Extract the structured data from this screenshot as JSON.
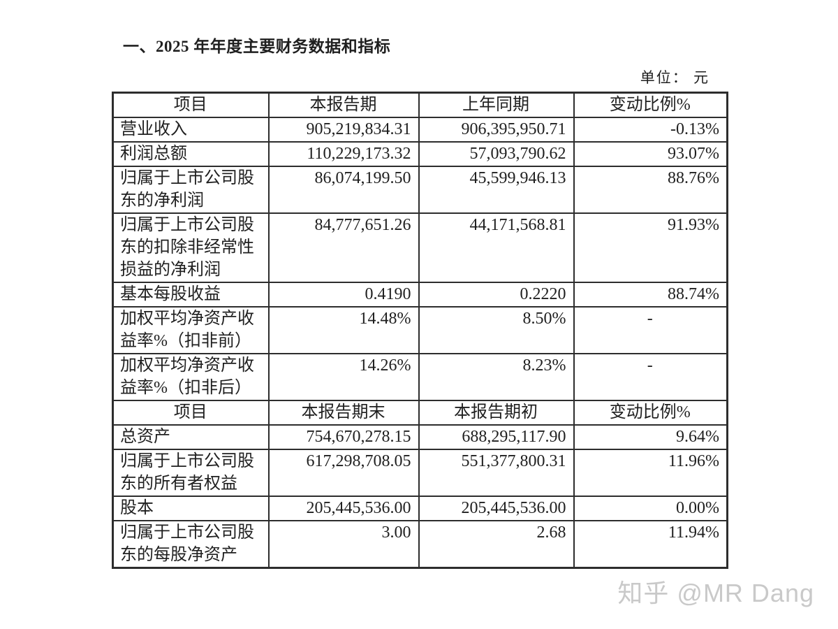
{
  "page": {
    "title": "一、2025 年年度主要财务数据和指标",
    "unit_label": "单位： 元",
    "watermark": "知乎 @MR Dang"
  },
  "colors": {
    "text": "#1f1f1f",
    "border": "#2d2d2d",
    "watermark": "#c9c9c9",
    "background": "#ffffff"
  },
  "table": {
    "sections": [
      {
        "header": [
          "项目",
          "本报告期",
          "上年同期",
          "变动比例%"
        ],
        "rows": [
          {
            "item": "营业收入",
            "current": "905,219,834.31",
            "prior": "906,395,950.71",
            "change": "-0.13%"
          },
          {
            "item": "利润总额",
            "current": "110,229,173.32",
            "prior": "57,093,790.62",
            "change": "93.07%"
          },
          {
            "item": "归属于上市公司股东的净利润",
            "current": "86,074,199.50",
            "prior": "45,599,946.13",
            "change": "88.76%"
          },
          {
            "item": "归属于上市公司股东的扣除非经常性损益的净利润",
            "current": "84,777,651.26",
            "prior": "44,171,568.81",
            "change": "91.93%"
          },
          {
            "item": "基本每股收益",
            "current": "0.4190",
            "prior": "0.2220",
            "change": "88.74%"
          },
          {
            "item": "加权平均净资产收益率%（扣非前）",
            "current": "14.48%",
            "prior": "8.50%",
            "change": "-"
          },
          {
            "item": "加权平均净资产收益率%（扣非后）",
            "current": "14.26%",
            "prior": "8.23%",
            "change": "-"
          }
        ]
      },
      {
        "header": [
          "项目",
          "本报告期末",
          "本报告期初",
          "变动比例%"
        ],
        "rows": [
          {
            "item": "总资产",
            "current": "754,670,278.15",
            "prior": "688,295,117.90",
            "change": "9.64%"
          },
          {
            "item": "归属于上市公司股东的所有者权益",
            "current": "617,298,708.05",
            "prior": "551,377,800.31",
            "change": "11.96%"
          },
          {
            "item": "股本",
            "current": "205,445,536.00",
            "prior": "205,445,536.00",
            "change": "0.00%"
          },
          {
            "item": "归属于上市公司股东的每股净资产",
            "current": "3.00",
            "prior": "2.68",
            "change": "11.94%"
          }
        ]
      }
    ]
  }
}
